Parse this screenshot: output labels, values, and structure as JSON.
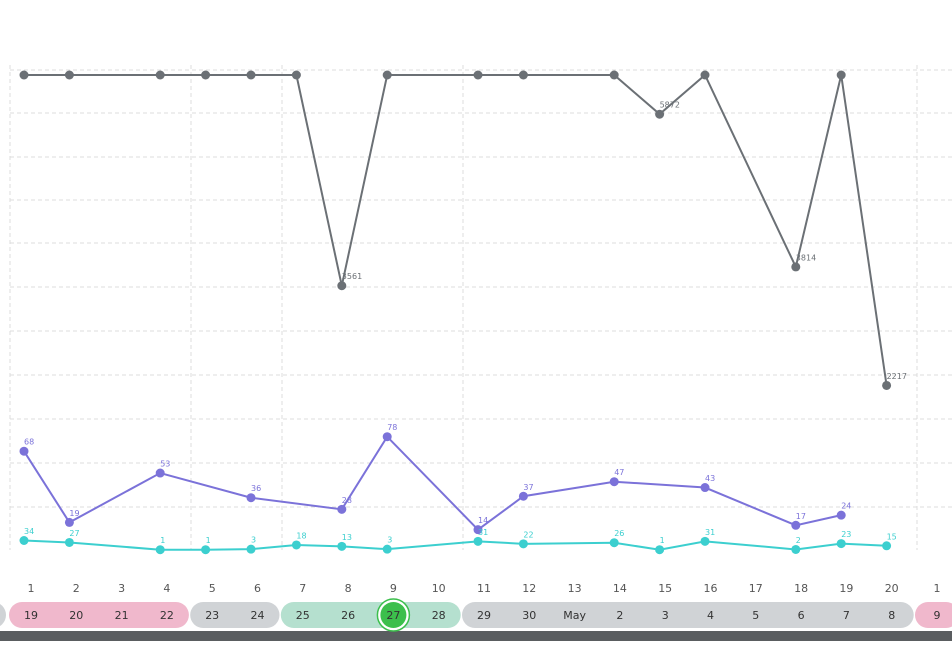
{
  "chart_data": {
    "type": "line",
    "columns": [
      "1",
      "2",
      "3",
      "4",
      "5",
      "6",
      "7",
      "8",
      "9",
      "10",
      "11",
      "12",
      "13",
      "14",
      "15",
      "16",
      "17",
      "18",
      "19",
      "20",
      "1"
    ],
    "series": [
      {
        "color": "#6b7075",
        "ylim": [
          0,
          6400
        ],
        "x": [
          1,
          2,
          4,
          5,
          6,
          7,
          8,
          9,
          11,
          12,
          14,
          15,
          16,
          18,
          19,
          20
        ],
        "values": [
          6400,
          6400,
          6400,
          6400,
          6400,
          6400,
          3561,
          6400,
          6400,
          6400,
          6400,
          5872,
          6400,
          3814,
          6400,
          2217
        ],
        "value_labels": [
          null,
          null,
          null,
          null,
          null,
          null,
          "3561",
          null,
          null,
          null,
          null,
          "5872",
          null,
          "3814",
          null,
          "2217"
        ]
      },
      {
        "color": "#7b72d9",
        "ylim": [
          0,
          327
        ],
        "x": [
          1,
          2,
          4,
          6,
          8,
          9,
          11,
          12,
          14,
          16,
          18,
          19
        ],
        "values": [
          68,
          19,
          53,
          36,
          28,
          78,
          14,
          37,
          47,
          43,
          17,
          24
        ],
        "value_labels": [
          "68",
          "19",
          "53",
          "36",
          "28",
          "78",
          "14",
          "37",
          "47",
          "43",
          "17",
          "24"
        ]
      },
      {
        "color": "#3ccfcf",
        "ylim": [
          0,
          1700
        ],
        "x": [
          1,
          2,
          4,
          5,
          6,
          7,
          8,
          9,
          11,
          12,
          14,
          15,
          16,
          18,
          19,
          20
        ],
        "values": [
          34,
          27,
          1,
          1,
          3,
          18,
          13,
          3,
          31,
          22,
          26,
          1,
          31,
          2,
          23,
          15
        ],
        "value_labels": [
          "34",
          "27",
          "1",
          "1",
          "3",
          "18",
          "13",
          "3",
          "31",
          "22",
          "26",
          "1",
          "31",
          "2",
          "23",
          "15"
        ]
      }
    ],
    "date_groups": [
      {
        "color": "#f0b8cc",
        "labels": [
          "19",
          "20",
          "21",
          "22"
        ]
      },
      {
        "color": "#d0d3d6",
        "labels": [
          "23",
          "24"
        ]
      },
      {
        "color": "#b5e0cf",
        "labels": [
          "25",
          "26",
          "27",
          "28"
        ],
        "selected": 2,
        "selected_color": "#3cbf4c"
      },
      {
        "color": "#d0d3d6",
        "labels": [
          "29",
          "30",
          "May",
          "2",
          "3",
          "4",
          "5",
          "6",
          "7",
          "8"
        ]
      },
      {
        "color": "#f0b8cc",
        "labels": [
          "9"
        ]
      }
    ]
  }
}
